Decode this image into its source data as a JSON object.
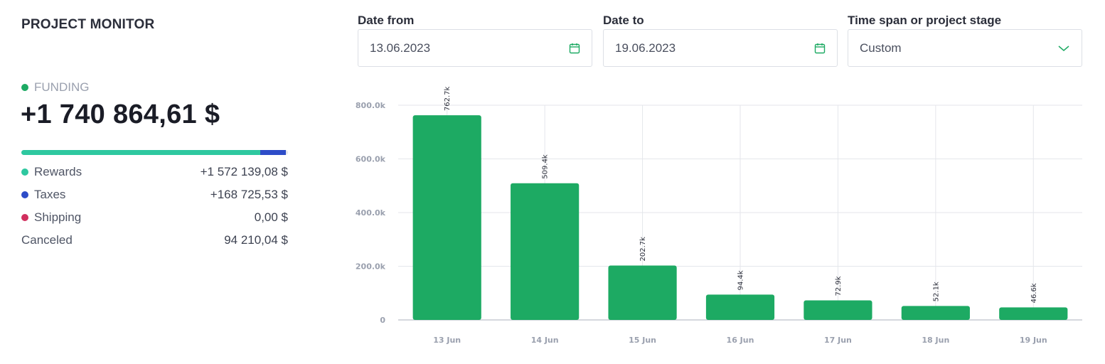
{
  "title": "PROJECT MONITOR",
  "funding": {
    "label": "FUNDING",
    "value": "+1 740 864,61 $",
    "dot_color": "#1daa63"
  },
  "breakdown": {
    "bar_segments": [
      {
        "name": "Rewards",
        "fraction": 0.8963,
        "color": "#2ec8a0"
      },
      {
        "name": "Taxes",
        "fraction": 0.0962,
        "color": "#2d4cc8"
      },
      {
        "name": "Shipping",
        "fraction": 0.0,
        "color": "#d12f5e"
      }
    ],
    "rows": [
      {
        "label": "Rewards",
        "value": "+1 572 139,08 $",
        "dot_color": "#2ec8a0"
      },
      {
        "label": "Taxes",
        "value": "+168 725,53 $",
        "dot_color": "#2d4cc8"
      },
      {
        "label": "Shipping",
        "value": "0,00 $",
        "dot_color": "#d12f5e"
      },
      {
        "label": "Canceled",
        "value": "94 210,04 $",
        "dot_color": ""
      }
    ]
  },
  "filters": {
    "date_from": {
      "label": "Date from",
      "value": "13.06.2023",
      "icon": "calendar-icon"
    },
    "date_to": {
      "label": "Date to",
      "value": "19.06.2023",
      "icon": "calendar-icon"
    },
    "span": {
      "label": "Time span or project stage",
      "value": "Custom",
      "icon": "chevron-down-icon"
    },
    "accent_color": "#1daa63"
  },
  "chart_data": {
    "type": "bar",
    "categories": [
      "13 Jun",
      "14 Jun",
      "15 Jun",
      "16 Jun",
      "17 Jun",
      "18 Jun",
      "19 Jun"
    ],
    "values": [
      762700,
      509400,
      202700,
      94400,
      72900,
      52100,
      46600
    ],
    "data_labels": [
      "762.7k",
      "509.4k",
      "202.7k",
      "94.4k",
      "72.9k",
      "52.1k",
      "46.6k"
    ],
    "y_ticks": [
      0,
      200000,
      400000,
      600000,
      800000
    ],
    "y_tick_labels": [
      "0",
      "200.0k",
      "400.0k",
      "600.0k",
      "800.0k"
    ],
    "ylim": [
      0,
      800000
    ],
    "bar_color": "#1daa63",
    "grid": true,
    "title": "",
    "xlabel": "",
    "ylabel": ""
  }
}
